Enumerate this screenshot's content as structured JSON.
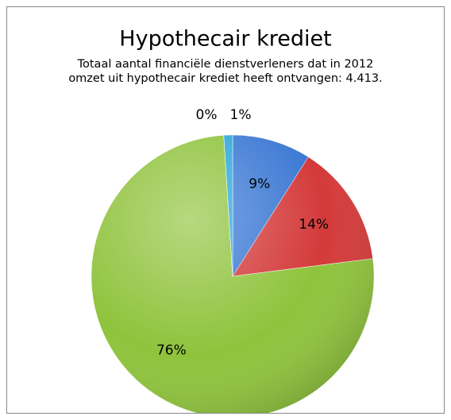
{
  "chart_data": {
    "type": "pie",
    "title": "Hypothecair krediet",
    "subtitle": [
      "Totaal aantal financiële dienstverleners dat in 2012",
      "omzet uit hypothecair krediet heeft ontvangen: 4.413."
    ],
    "values": [
      9,
      14,
      76,
      0,
      1
    ],
    "value_labels": [
      "9%",
      "14%",
      "76%",
      "0%",
      "1%"
    ],
    "colors": [
      "#3b78d4",
      "#d43a3a",
      "#8fc33c",
      "#7a4e9e",
      "#2aa7d9"
    ]
  }
}
